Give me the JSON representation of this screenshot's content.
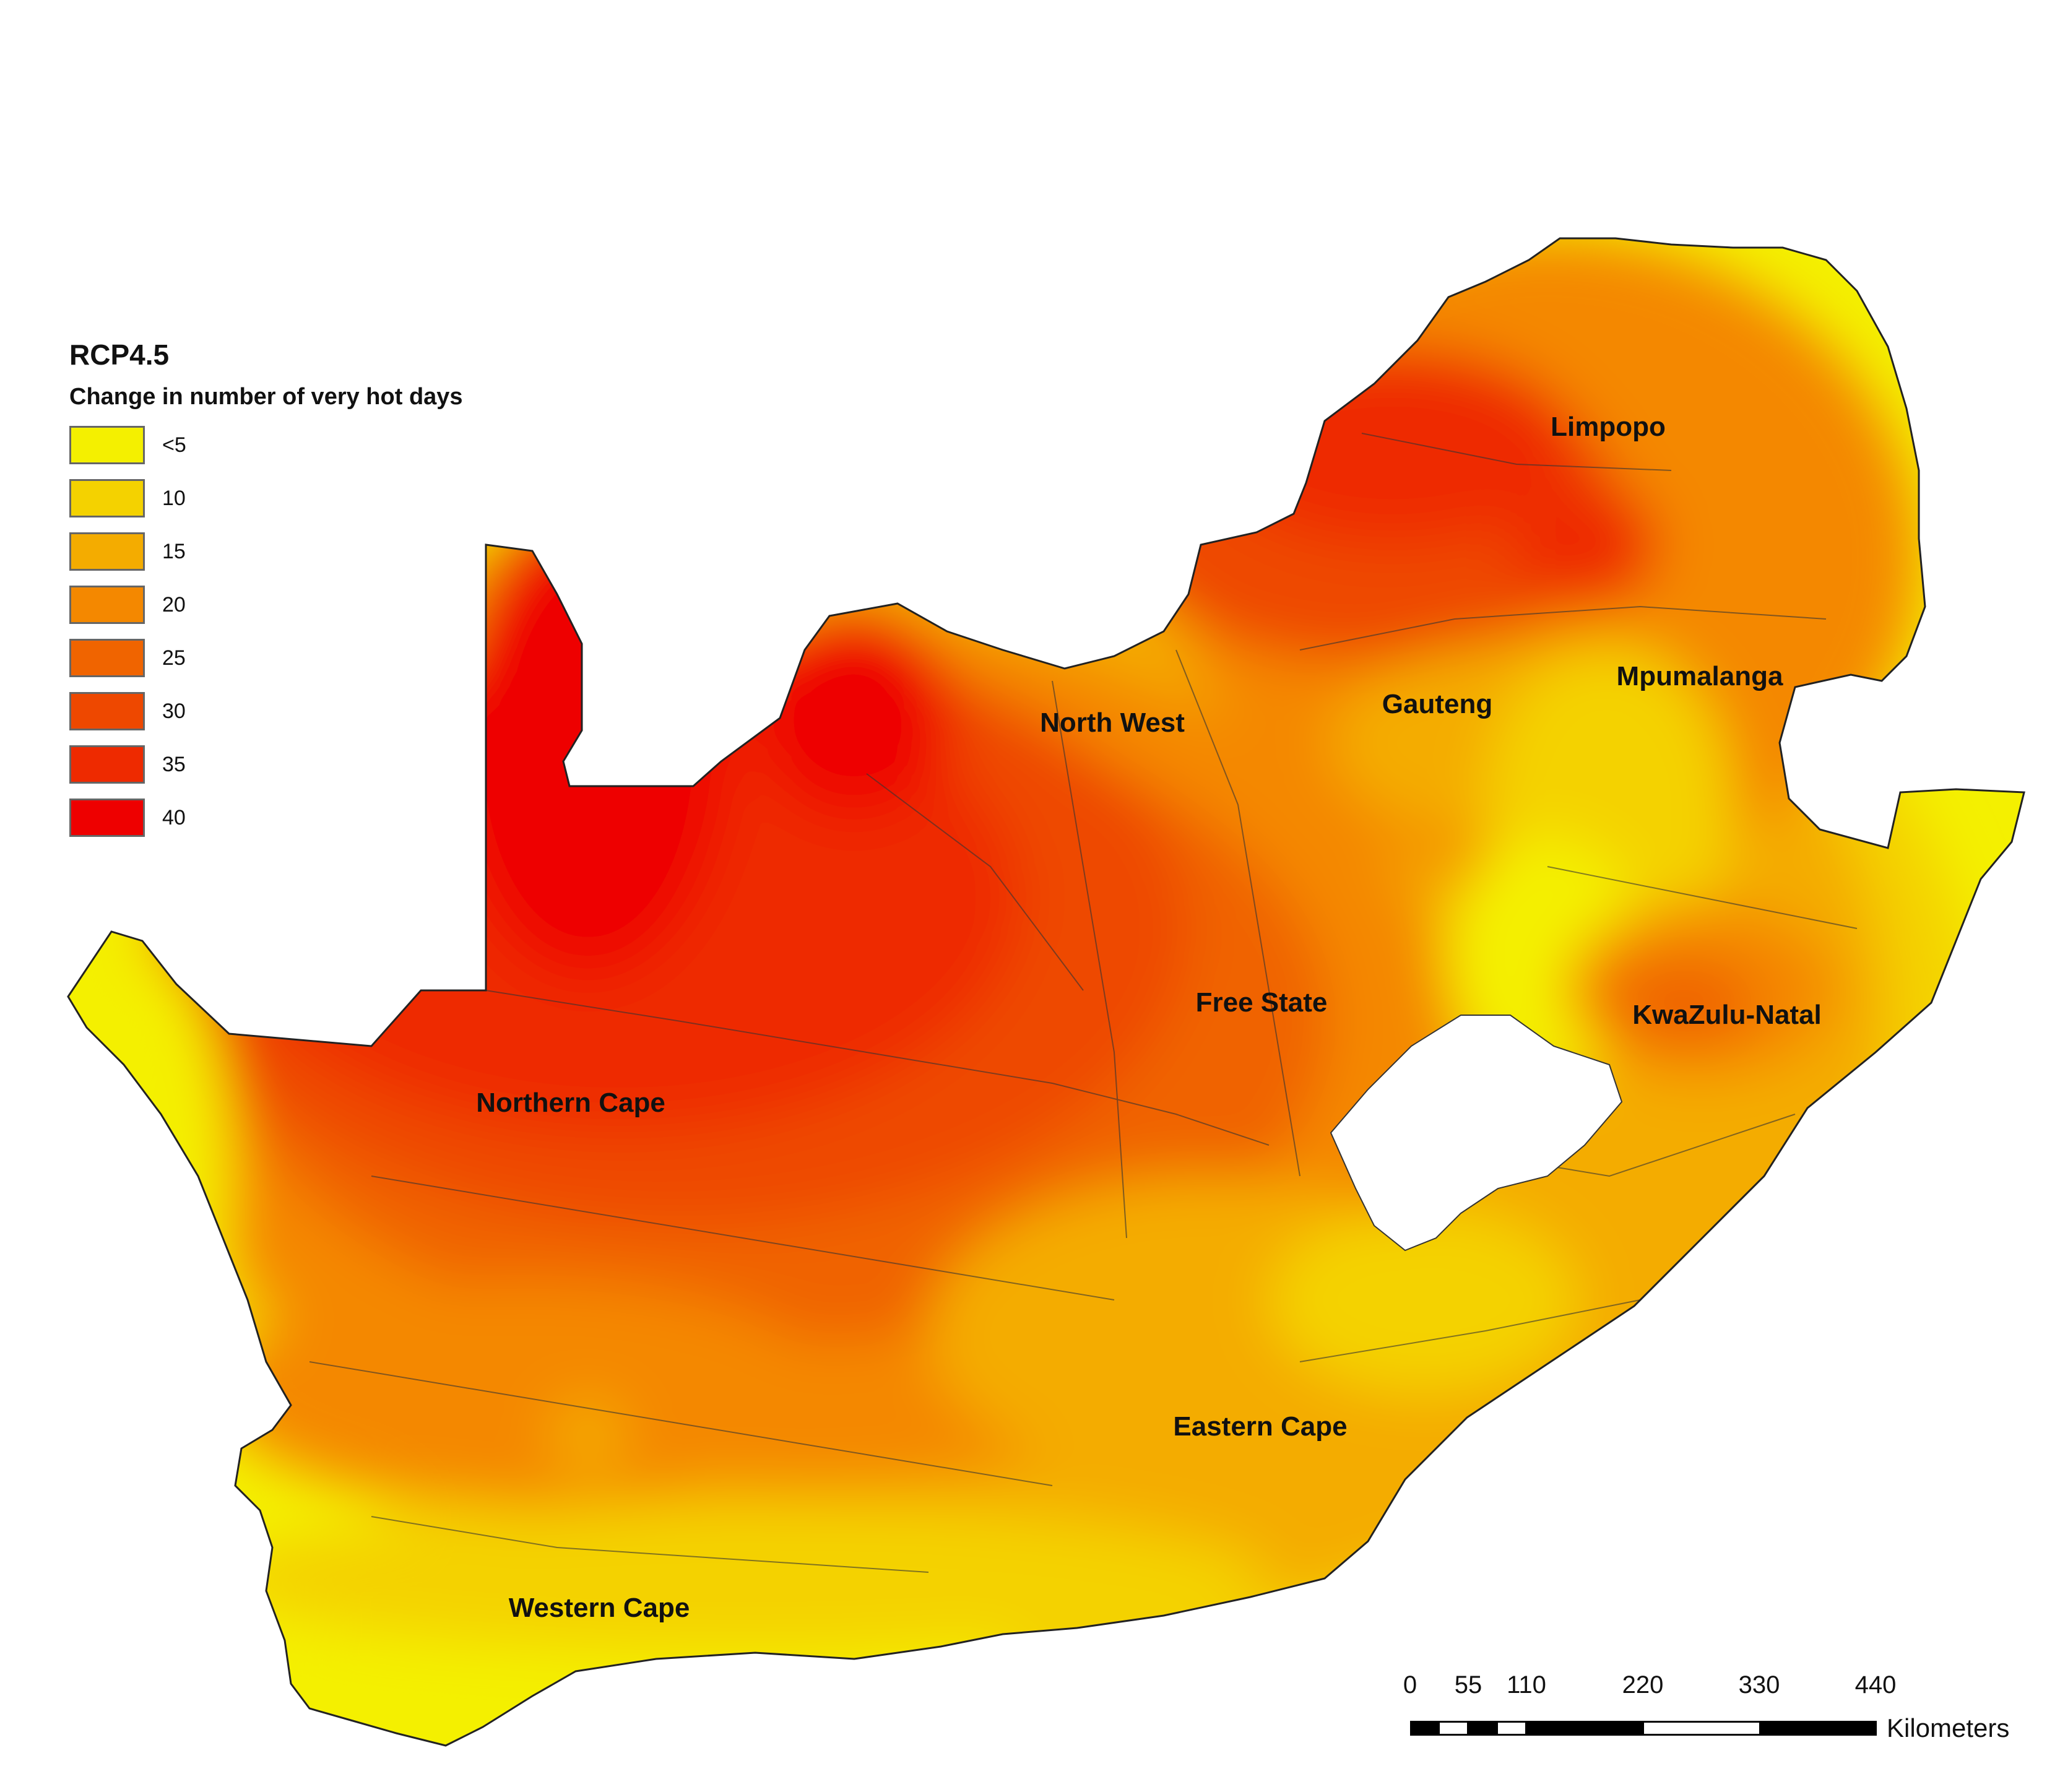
{
  "legend": {
    "title": "RCP4.5",
    "subtitle": "Change in number of very hot days",
    "items": [
      {
        "label": "<5",
        "color": "#f4f000"
      },
      {
        "label": "10",
        "color": "#f4d200"
      },
      {
        "label": "15",
        "color": "#f4ac00"
      },
      {
        "label": "20",
        "color": "#f48800"
      },
      {
        "label": "25",
        "color": "#f06400"
      },
      {
        "label": "30",
        "color": "#ee4800"
      },
      {
        "label": "35",
        "color": "#ee2a00"
      },
      {
        "label": "40",
        "color": "#ee0000"
      }
    ]
  },
  "regions": {
    "limpopo": "Limpopo",
    "north_west": "North West",
    "gauteng": "Gauteng",
    "mpumalanga": "Mpumalanga",
    "free_state": "Free State",
    "kwazulu_natal": "KwaZulu-Natal",
    "northern_cape": "Northern Cape",
    "eastern_cape": "Eastern Cape",
    "western_cape": "Western Cape"
  },
  "scale_bar": {
    "ticks": [
      "0",
      "55",
      "110",
      "220",
      "330",
      "440"
    ],
    "unit": "Kilometers"
  }
}
